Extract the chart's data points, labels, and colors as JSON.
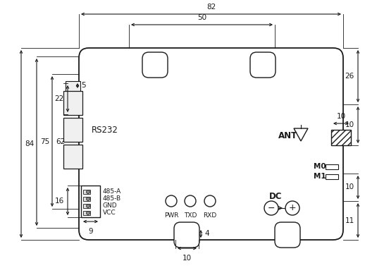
{
  "bg_color": "#ffffff",
  "line_color": "#1a1a1a",
  "dim_82": "82",
  "dim_50": "50",
  "dim_84": "84",
  "dim_75": "75",
  "dim_62": "62",
  "dim_26": "26",
  "dim_22": "22",
  "dim_5": "5",
  "dim_16": "16",
  "dim_9": "9",
  "dim_10a": "10",
  "dim_10b": "10",
  "dim_11": "11",
  "dim_4": "4",
  "dim_10c": "10",
  "labels_485": [
    "485-A",
    "485-B",
    "GND",
    "VCC"
  ],
  "led_labels": [
    "PWR",
    "TXD",
    "RXD"
  ],
  "label_rs232": "RS232",
  "label_ant": "ANT",
  "label_m0": "M0",
  "label_m1": "M1",
  "label_dc": "DC"
}
